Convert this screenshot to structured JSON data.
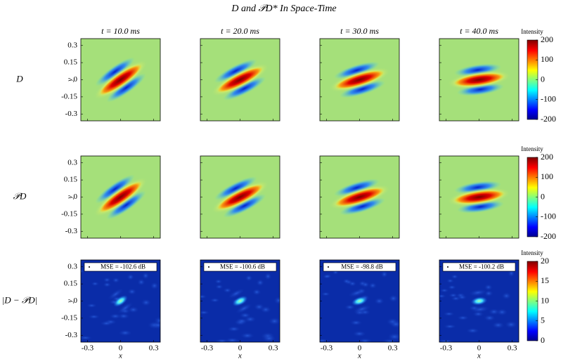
{
  "title": "D and 𝒫D* In Space-Time",
  "columns": [
    "t = 10.0 ms",
    "t = 20.0 ms",
    "t = 30.0 ms",
    "t = 40.0 ms"
  ],
  "rows": [
    "D",
    "𝒫D",
    "|D − 𝒫D|"
  ],
  "axes": {
    "xlabel": "x",
    "ylabel": "y",
    "lim": [
      -0.36,
      0.36
    ],
    "xticks": [
      -0.3,
      0,
      0.3
    ],
    "yticks": [
      0.3,
      0.15,
      0,
      -0.15,
      -0.3
    ]
  },
  "colorbars": [
    {
      "label": "Intensity",
      "lim": [
        -200,
        200
      ],
      "ticks": [
        200,
        100,
        0,
        -100,
        -200
      ]
    },
    {
      "label": "Intensity",
      "lim": [
        -200,
        200
      ],
      "ticks": [
        200,
        100,
        0,
        -100,
        -200
      ]
    },
    {
      "label": "Intensity",
      "lim": [
        0,
        20
      ],
      "ticks": [
        20,
        15,
        10,
        5,
        0
      ]
    }
  ],
  "mse_labels": [
    "MSE = -102.6 dB",
    "MSE = -100.6 dB",
    "MSE = -98.8 dB",
    "MSE = -100.2 dB"
  ]
}
